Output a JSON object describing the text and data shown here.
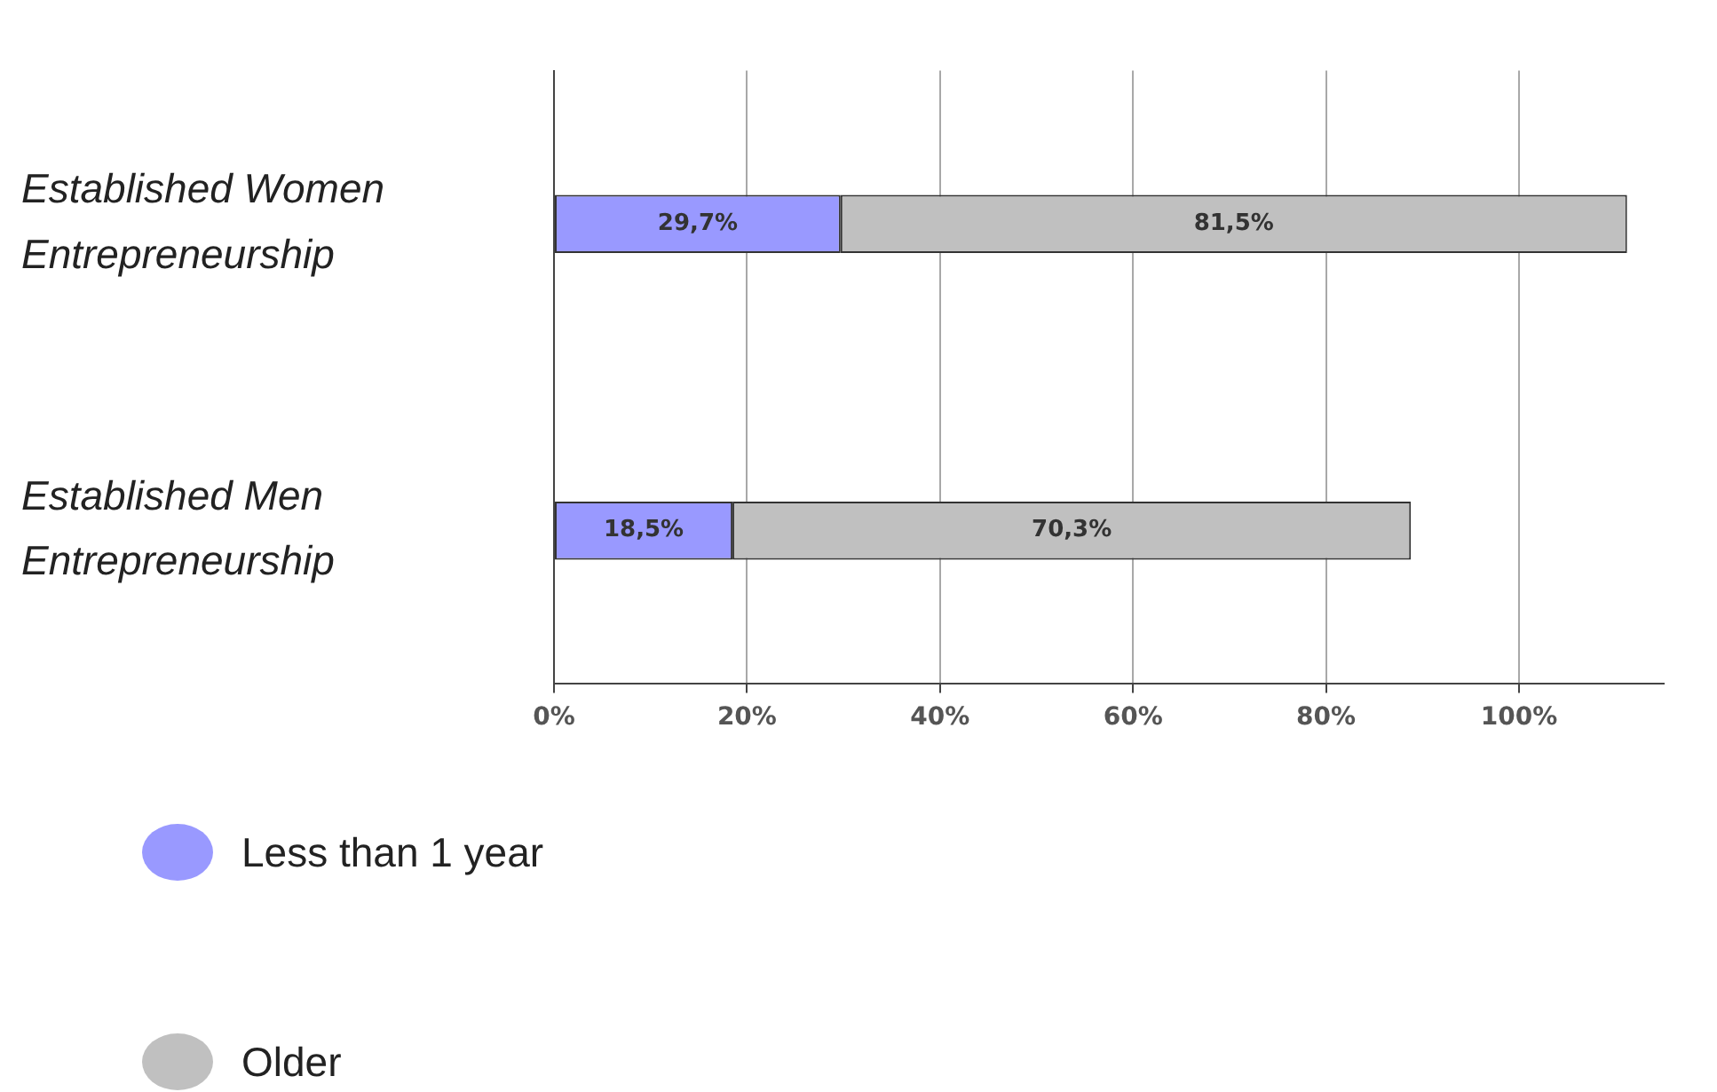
{
  "chart_data": {
    "type": "bar",
    "orientation": "horizontal",
    "stacked": true,
    "categories": [
      "Established Women Entrepreneurship",
      "Established Men Entrepreneurship"
    ],
    "series": [
      {
        "name": "Less than 1 year",
        "color": "#9999ff",
        "values": [
          29.7,
          18.5
        ],
        "value_labels": [
          "29,7%",
          "18,5%"
        ]
      },
      {
        "name": "Older",
        "color": "#c0c0c0",
        "values": [
          81.5,
          70.3
        ],
        "value_labels": [
          "81,5%",
          "70,3%"
        ]
      }
    ],
    "xlim": [
      0,
      115
    ],
    "xticks": [
      {
        "value": 0,
        "label": "0%"
      },
      {
        "value": 20,
        "label": "20%"
      },
      {
        "value": 40,
        "label": "40%"
      },
      {
        "value": 60,
        "label": "60%"
      },
      {
        "value": 80,
        "label": "80%"
      },
      {
        "value": 100,
        "label": "100%"
      }
    ],
    "grid": "x",
    "legend": "bottom left"
  }
}
